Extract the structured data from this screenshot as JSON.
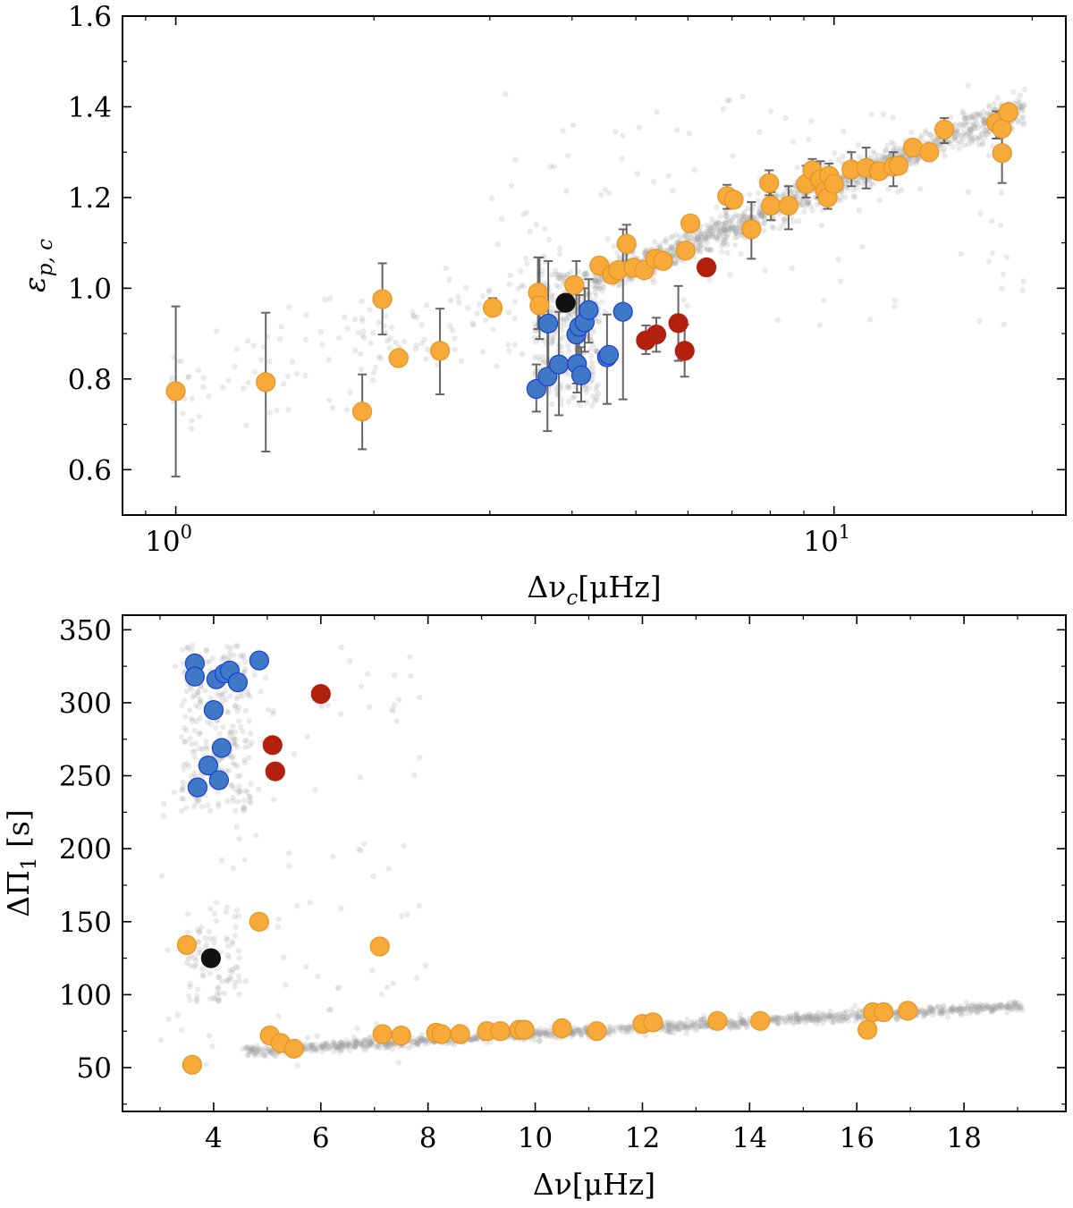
{
  "colors": {
    "background_points": "#9e9e9e",
    "orange": "#f7a93a",
    "orange_edge": "#e59420",
    "blue": "#3f78c4",
    "blue_edge": "#1d3fd6",
    "red": "#b2200e",
    "black": "#111111",
    "errorbar": "#666666"
  },
  "chart_data": [
    {
      "type": "scatter",
      "x_scale": "log",
      "xlabel": "Δν",
      "xlabel_sub": "c",
      "xlabel_unit": "[μHz]",
      "ylabel": "ε",
      "ylabel_sub": "p, c",
      "xlim": [
        0.83,
        22.5
      ],
      "ylim": [
        0.5,
        1.6
      ],
      "x_ticks": [
        {
          "value": 1,
          "base": "10",
          "exp": "0"
        },
        {
          "value": 10,
          "base": "10",
          "exp": "1"
        }
      ],
      "y_ticks": [
        {
          "value": 0.6,
          "label": "0.6"
        },
        {
          "value": 0.8,
          "label": "0.8"
        },
        {
          "value": 1.0,
          "label": "1.0"
        },
        {
          "value": 1.2,
          "label": "1.2"
        },
        {
          "value": 1.4,
          "label": "1.4"
        },
        {
          "value": 1.6,
          "label": "1.6"
        }
      ],
      "grid": false,
      "series": [
        {
          "group": "orange",
          "points": [
            {
              "x": 1.0,
              "y": 0.773,
              "ylo": 0.585,
              "yhi": 0.96
            },
            {
              "x": 1.37,
              "y": 0.793,
              "ylo": 0.64,
              "yhi": 0.946
            },
            {
              "x": 1.92,
              "y": 0.728,
              "ylo": 0.645,
              "yhi": 0.81
            },
            {
              "x": 2.06,
              "y": 0.976,
              "ylo": 0.898,
              "yhi": 1.055
            },
            {
              "x": 2.18,
              "y": 0.846
            },
            {
              "x": 2.52,
              "y": 0.862,
              "ylo": 0.766,
              "yhi": 0.955
            },
            {
              "x": 3.03,
              "y": 0.957,
              "ylo": 0.94,
              "yhi": 0.978
            },
            {
              "x": 3.55,
              "y": 0.99,
              "ylo": 0.91,
              "yhi": 1.068
            },
            {
              "x": 3.57,
              "y": 0.962,
              "ylo": 0.888,
              "yhi": 1.068
            },
            {
              "x": 4.03,
              "y": 1.007
            },
            {
              "x": 4.4,
              "y": 1.05
            },
            {
              "x": 4.6,
              "y": 1.03
            },
            {
              "x": 4.7,
              "y": 1.04
            },
            {
              "x": 4.84,
              "y": 1.098,
              "ylo": 1.045,
              "yhi": 1.14
            },
            {
              "x": 4.96,
              "y": 1.045
            },
            {
              "x": 5.15,
              "y": 1.04
            },
            {
              "x": 5.35,
              "y": 1.065
            },
            {
              "x": 5.5,
              "y": 1.06
            },
            {
              "x": 5.95,
              "y": 1.083
            },
            {
              "x": 6.05,
              "y": 1.143
            },
            {
              "x": 6.88,
              "y": 1.203,
              "ylo": 1.175,
              "yhi": 1.228
            },
            {
              "x": 7.04,
              "y": 1.195
            },
            {
              "x": 7.49,
              "y": 1.13,
              "ylo": 1.065,
              "yhi": 1.19
            },
            {
              "x": 7.97,
              "y": 1.232,
              "ylo": 1.205,
              "yhi": 1.26
            },
            {
              "x": 8.02,
              "y": 1.182,
              "ylo": 1.15,
              "yhi": 1.212
            },
            {
              "x": 8.53,
              "y": 1.182,
              "ylo": 1.13,
              "yhi": 1.225
            },
            {
              "x": 9.07,
              "y": 1.23,
              "ylo": 1.2,
              "yhi": 1.27
            },
            {
              "x": 9.27,
              "y": 1.26,
              "ylo": 1.232,
              "yhi": 1.285
            },
            {
              "x": 9.53,
              "y": 1.24,
              "ylo": 1.2,
              "yhi": 1.28
            },
            {
              "x": 9.7,
              "y": 1.215,
              "ylo": 1.19,
              "yhi": 1.25
            },
            {
              "x": 9.78,
              "y": 1.2,
              "ylo": 1.175,
              "yhi": 1.225
            },
            {
              "x": 9.83,
              "y": 1.248,
              "ylo": 1.22,
              "yhi": 1.275
            },
            {
              "x": 10.0,
              "y": 1.23
            },
            {
              "x": 10.63,
              "y": 1.262,
              "ylo": 1.225,
              "yhi": 1.3
            },
            {
              "x": 11.19,
              "y": 1.265,
              "ylo": 1.22,
              "yhi": 1.31
            },
            {
              "x": 11.7,
              "y": 1.258
            },
            {
              "x": 12.31,
              "y": 1.268,
              "ylo": 1.225,
              "yhi": 1.3
            },
            {
              "x": 12.53,
              "y": 1.27
            },
            {
              "x": 13.18,
              "y": 1.31
            },
            {
              "x": 13.95,
              "y": 1.3
            },
            {
              "x": 14.71,
              "y": 1.35,
              "ylo": 1.32,
              "yhi": 1.375
            },
            {
              "x": 17.64,
              "y": 1.365,
              "ylo": 1.33,
              "yhi": 1.39
            },
            {
              "x": 17.99,
              "y": 1.352
            },
            {
              "x": 18.0,
              "y": 1.298,
              "ylo": 1.232,
              "yhi": 1.36
            },
            {
              "x": 18.4,
              "y": 1.388
            }
          ]
        },
        {
          "group": "blue",
          "points": [
            {
              "x": 3.53,
              "y": 0.778,
              "ylo": 0.728,
              "yhi": 0.832
            },
            {
              "x": 3.67,
              "y": 0.805,
              "ylo": 0.685,
              "yhi": 0.93
            },
            {
              "x": 3.68,
              "y": 0.922,
              "ylo": 0.82,
              "yhi": 1.06
            },
            {
              "x": 3.82,
              "y": 0.832,
              "ylo": 0.72,
              "yhi": 0.948
            },
            {
              "x": 4.06,
              "y": 0.898,
              "ylo": 0.79,
              "yhi": 1.06
            },
            {
              "x": 4.07,
              "y": 0.833,
              "ylo": 0.77,
              "yhi": 0.895
            },
            {
              "x": 4.1,
              "y": 0.915,
              "ylo": 0.845,
              "yhi": 0.985
            },
            {
              "x": 4.13,
              "y": 0.808,
              "ylo": 0.75,
              "yhi": 0.87
            },
            {
              "x": 4.18,
              "y": 0.925,
              "ylo": 0.86,
              "yhi": 1.0
            },
            {
              "x": 4.24,
              "y": 0.952,
              "ylo": 0.88,
              "yhi": 1.02
            },
            {
              "x": 4.52,
              "y": 0.848,
              "ylo": 0.745,
              "yhi": 0.942
            },
            {
              "x": 4.55,
              "y": 0.853
            },
            {
              "x": 4.78,
              "y": 0.948,
              "ylo": 0.755,
              "yhi": 1.13
            }
          ]
        },
        {
          "group": "red",
          "points": [
            {
              "x": 5.18,
              "y": 0.885,
              "ylo": 0.855,
              "yhi": 0.918
            },
            {
              "x": 5.37,
              "y": 0.898,
              "ylo": 0.86,
              "yhi": 0.935
            },
            {
              "x": 5.8,
              "y": 0.923,
              "ylo": 0.84,
              "yhi": 1.005
            },
            {
              "x": 5.93,
              "y": 0.862,
              "ylo": 0.805,
              "yhi": 0.92
            },
            {
              "x": 6.4,
              "y": 1.046
            }
          ]
        },
        {
          "group": "black",
          "points": [
            {
              "x": 3.91,
              "y": 0.968
            }
          ]
        }
      ]
    },
    {
      "type": "scatter",
      "x_scale": "linear",
      "xlabel": "Δν",
      "xlabel_unit": "[μHz]",
      "ylabel": "ΔΠ",
      "ylabel_sub": "1",
      "ylabel_unit": "[s]",
      "xlim": [
        2.3,
        19.9
      ],
      "ylim": [
        20,
        360
      ],
      "x_ticks": [
        {
          "value": 4,
          "label": "4"
        },
        {
          "value": 6,
          "label": "6"
        },
        {
          "value": 8,
          "label": "8"
        },
        {
          "value": 10,
          "label": "10"
        },
        {
          "value": 12,
          "label": "12"
        },
        {
          "value": 14,
          "label": "14"
        },
        {
          "value": 16,
          "label": "16"
        },
        {
          "value": 18,
          "label": "18"
        }
      ],
      "y_ticks": [
        {
          "value": 50,
          "label": "50"
        },
        {
          "value": 100,
          "label": "100"
        },
        {
          "value": 150,
          "label": "150"
        },
        {
          "value": 200,
          "label": "200"
        },
        {
          "value": 250,
          "label": "250"
        },
        {
          "value": 300,
          "label": "300"
        },
        {
          "value": 350,
          "label": "350"
        }
      ],
      "grid": false,
      "series": [
        {
          "group": "orange",
          "points": [
            {
              "x": 3.5,
              "y": 134
            },
            {
              "x": 3.6,
              "y": 52
            },
            {
              "x": 4.85,
              "y": 150
            },
            {
              "x": 5.05,
              "y": 72
            },
            {
              "x": 5.25,
              "y": 67
            },
            {
              "x": 5.5,
              "y": 63
            },
            {
              "x": 7.1,
              "y": 133
            },
            {
              "x": 7.15,
              "y": 73
            },
            {
              "x": 7.5,
              "y": 72
            },
            {
              "x": 8.15,
              "y": 74
            },
            {
              "x": 8.25,
              "y": 73
            },
            {
              "x": 8.6,
              "y": 73
            },
            {
              "x": 9.1,
              "y": 75
            },
            {
              "x": 9.35,
              "y": 75
            },
            {
              "x": 9.7,
              "y": 76
            },
            {
              "x": 9.8,
              "y": 76
            },
            {
              "x": 10.5,
              "y": 77
            },
            {
              "x": 11.15,
              "y": 75
            },
            {
              "x": 12.0,
              "y": 80
            },
            {
              "x": 12.2,
              "y": 81
            },
            {
              "x": 13.4,
              "y": 82
            },
            {
              "x": 14.2,
              "y": 82
            },
            {
              "x": 16.2,
              "y": 76
            },
            {
              "x": 16.3,
              "y": 88
            },
            {
              "x": 16.5,
              "y": 88
            },
            {
              "x": 16.95,
              "y": 89
            }
          ]
        },
        {
          "group": "blue",
          "points": [
            {
              "x": 3.65,
              "y": 327
            },
            {
              "x": 3.65,
              "y": 318
            },
            {
              "x": 3.7,
              "y": 242
            },
            {
              "x": 3.9,
              "y": 257
            },
            {
              "x": 4.0,
              "y": 295
            },
            {
              "x": 4.05,
              "y": 316
            },
            {
              "x": 4.1,
              "y": 247
            },
            {
              "x": 4.15,
              "y": 269
            },
            {
              "x": 4.2,
              "y": 320
            },
            {
              "x": 4.3,
              "y": 322
            },
            {
              "x": 4.45,
              "y": 314
            },
            {
              "x": 4.85,
              "y": 329
            }
          ]
        },
        {
          "group": "red",
          "points": [
            {
              "x": 5.1,
              "y": 271
            },
            {
              "x": 5.15,
              "y": 253
            },
            {
              "x": 6.0,
              "y": 306
            }
          ]
        },
        {
          "group": "black",
          "points": [
            {
              "x": 3.95,
              "y": 125
            }
          ]
        }
      ]
    }
  ]
}
